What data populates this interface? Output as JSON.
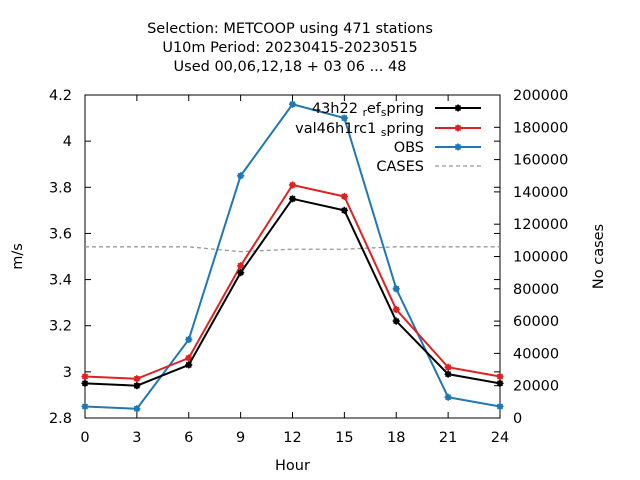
{
  "chart_data": {
    "type": "line",
    "title_lines": [
      "Selection: METCOOP using   471 stations",
      "U10m   Period: 20230415-20230515",
      "Used  00,06,12,18  + 03 06 ... 48"
    ],
    "xlabel": "Hour",
    "ylabel": "m/s",
    "y2label": "No cases",
    "x": [
      0,
      3,
      6,
      9,
      12,
      15,
      18,
      21,
      24
    ],
    "xticks": [
      "0",
      "3",
      "6",
      "9",
      "12",
      "15",
      "18",
      "21",
      "24"
    ],
    "xlim": [
      0,
      24
    ],
    "ylim": [
      2.8,
      4.2
    ],
    "yticks": [
      "2.8",
      "3",
      "3.2",
      "3.4",
      "3.6",
      "3.8",
      "4",
      "4.2"
    ],
    "y2lim": [
      0,
      200000
    ],
    "y2ticks": [
      "0",
      "20000",
      "40000",
      "60000",
      "80000",
      "100000",
      "120000",
      "140000",
      "160000",
      "180000",
      "200000"
    ],
    "legend_position": "top-right",
    "series": [
      {
        "name": "43h22 ",
        "name_sub": "r",
        "name_mid": "ef",
        "name_sub2": "s",
        "name_end": "pring",
        "color": "#000000",
        "axis": "y1",
        "values": [
          2.95,
          2.94,
          3.03,
          3.43,
          3.75,
          3.7,
          3.22,
          2.99,
          2.95
        ]
      },
      {
        "name": "val46h1rc1 ",
        "name_sub": "s",
        "name_end": "pring",
        "color": "#dd2222",
        "axis": "y1",
        "values": [
          2.98,
          2.97,
          3.06,
          3.46,
          3.81,
          3.76,
          3.27,
          3.02,
          2.98
        ]
      },
      {
        "name": "OBS",
        "color": "#1f77b4",
        "axis": "y1",
        "values": [
          2.85,
          2.84,
          3.14,
          3.85,
          4.16,
          4.1,
          3.36,
          2.89,
          2.85
        ]
      },
      {
        "name": "CASES",
        "color": "#999999",
        "axis": "y2",
        "dashed": true,
        "values": [
          106000,
          106000,
          106000,
          103000,
          104500,
          104500,
          106000,
          106000,
          106000
        ]
      }
    ]
  }
}
